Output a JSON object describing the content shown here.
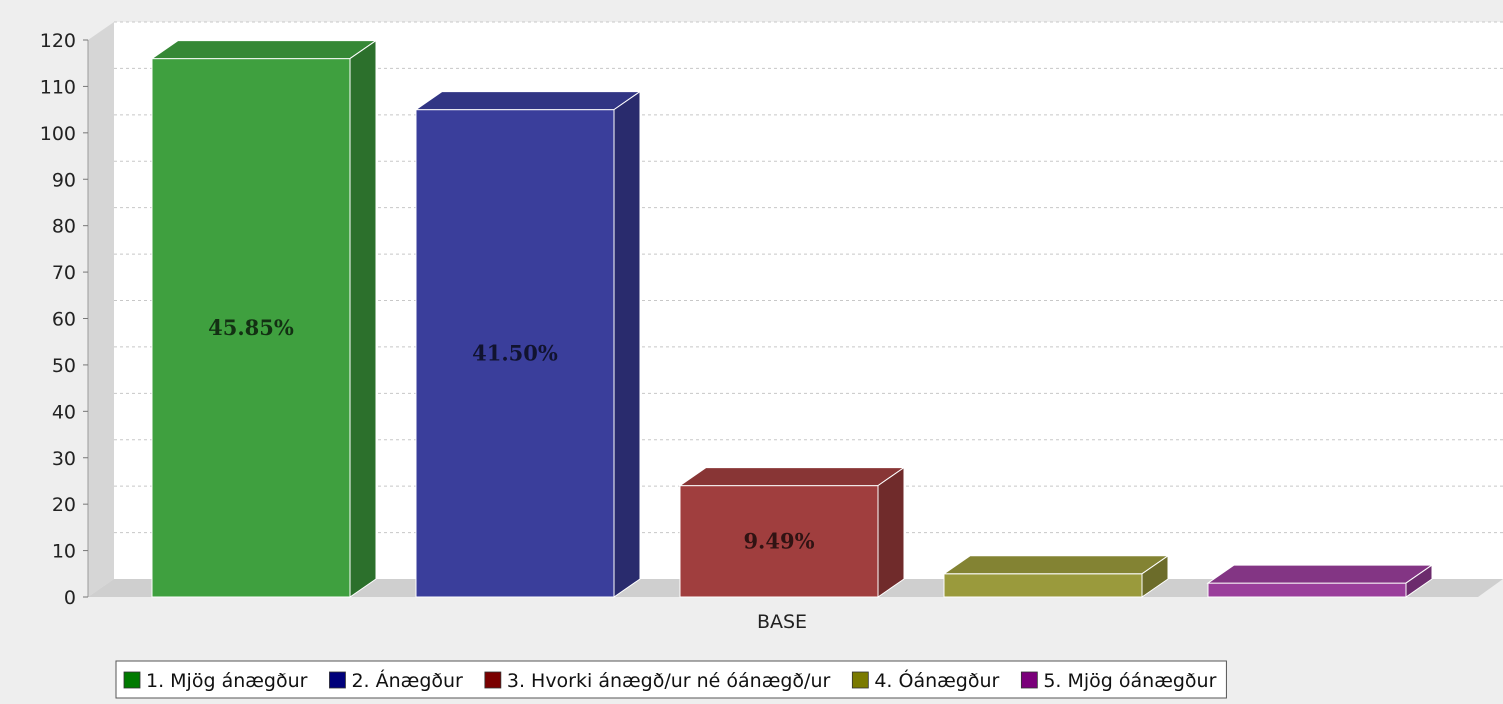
{
  "chart_data": {
    "type": "bar",
    "categories": [
      "BASE"
    ],
    "xlabel": "BASE",
    "ylabel": "",
    "ylim": [
      0,
      120
    ],
    "yticks": [
      0,
      10,
      20,
      30,
      40,
      50,
      60,
      70,
      80,
      90,
      100,
      110,
      120
    ],
    "grid": true,
    "legend_position": "bottom",
    "series": [
      {
        "name": "1. Mjög ánægður",
        "values": [
          116
        ],
        "label": "45.85%",
        "color": "#3fa03f"
      },
      {
        "name": "2. Ánægður",
        "values": [
          105
        ],
        "label": "41.50%",
        "color": "#3a3e9b"
      },
      {
        "name": "3. Hvorki ánægð/ur né óánægð/ur",
        "values": [
          24
        ],
        "label": "9.49%",
        "color": "#a03e3e"
      },
      {
        "name": "4. Óánægður",
        "values": [
          5
        ],
        "label": "",
        "color": "#9a9a3c"
      },
      {
        "name": "5. Mjög óánægður",
        "values": [
          3
        ],
        "label": "",
        "color": "#9a3e9b"
      }
    ],
    "legend_colors": [
      "#007a00",
      "#00007a",
      "#7a0000",
      "#7a7a00",
      "#7a007a"
    ]
  }
}
